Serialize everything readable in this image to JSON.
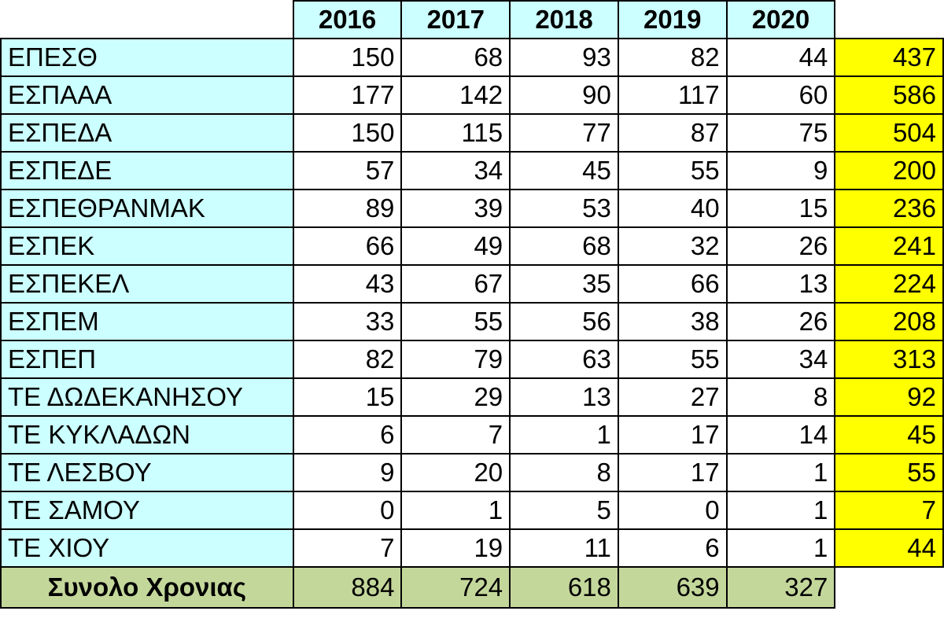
{
  "header": {
    "years": [
      "2016",
      "2017",
      "2018",
      "2019",
      "2020"
    ]
  },
  "table": {
    "rows": [
      {
        "label": "ΕΠΕΣΘ",
        "values": [
          150,
          68,
          93,
          82,
          44
        ],
        "total": 437
      },
      {
        "label": "ΕΣΠΑΑΑ",
        "values": [
          177,
          142,
          90,
          117,
          60
        ],
        "total": 586
      },
      {
        "label": "ΕΣΠΕΔΑ",
        "values": [
          150,
          115,
          77,
          87,
          75
        ],
        "total": 504
      },
      {
        "label": "ΕΣΠΕΔΕ",
        "values": [
          57,
          34,
          45,
          55,
          9
        ],
        "total": 200
      },
      {
        "label": "ΕΣΠΕΘΡΑΝΜΑΚ",
        "values": [
          89,
          39,
          53,
          40,
          15
        ],
        "total": 236
      },
      {
        "label": "ΕΣΠΕΚ",
        "values": [
          66,
          49,
          68,
          32,
          26
        ],
        "total": 241
      },
      {
        "label": "ΕΣΠΕΚΕΛ",
        "values": [
          43,
          67,
          35,
          66,
          13
        ],
        "total": 224
      },
      {
        "label": "ΕΣΠΕΜ",
        "values": [
          33,
          55,
          56,
          38,
          26
        ],
        "total": 208
      },
      {
        "label": "ΕΣΠΕΠ",
        "values": [
          82,
          79,
          63,
          55,
          34
        ],
        "total": 313
      },
      {
        "label": "ΤΕ ΔΩΔΕΚΑΝΗΣΟΥ",
        "values": [
          15,
          29,
          13,
          27,
          8
        ],
        "total": 92
      },
      {
        "label": "ΤΕ ΚΥΚΛΑΔΩΝ",
        "values": [
          6,
          7,
          1,
          17,
          14
        ],
        "total": 45
      },
      {
        "label": "ΤΕ ΛΕΣΒΟΥ",
        "values": [
          9,
          20,
          8,
          17,
          1
        ],
        "total": 55
      },
      {
        "label": "ΤΕ ΣΑΜΟΥ",
        "values": [
          0,
          1,
          5,
          0,
          1
        ],
        "total": 7
      },
      {
        "label": "ΤΕ ΧΙΟΥ",
        "values": [
          7,
          19,
          11,
          6,
          1
        ],
        "total": 44
      }
    ]
  },
  "footer": {
    "label": "Συνολο Χρονιας",
    "values": [
      884,
      724,
      618,
      639,
      327
    ]
  }
}
